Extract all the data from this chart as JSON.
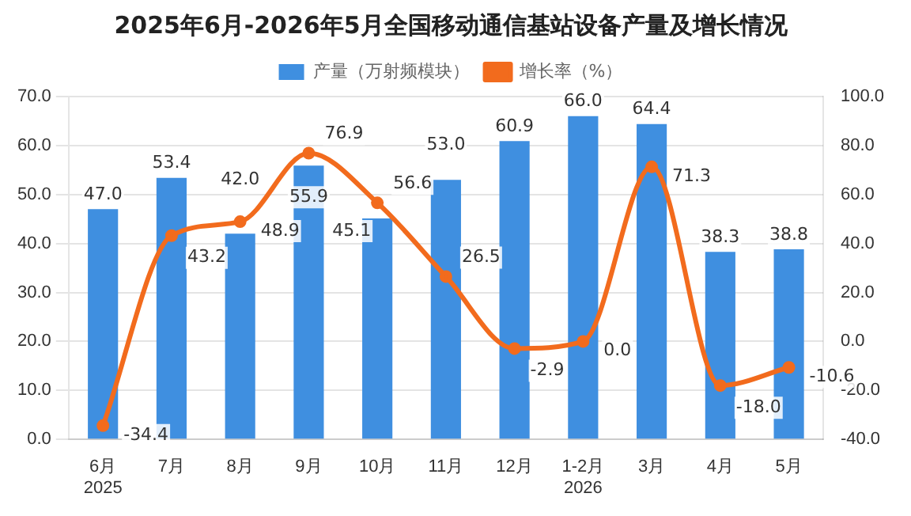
{
  "chart_data": {
    "type": "bar",
    "title": "2025年6月-2026年5月全国移动通信基站设备产量及增长情况",
    "categories": [
      "6月\n2025",
      "7月",
      "8月",
      "9月",
      "10月",
      "11月",
      "12月",
      "1-2月\n2026",
      "3月",
      "4月",
      "5月"
    ],
    "series": [
      {
        "name": "产量（万射频模块）",
        "color": "#3f8fe0",
        "values": [
          47.0,
          53.4,
          42.0,
          55.9,
          45.1,
          53.0,
          60.9,
          66.0,
          64.4,
          38.3,
          38.8
        ],
        "value_labels": [
          "47.0",
          "53.4",
          "42.0",
          "55.9",
          "45.1",
          "53.0",
          "60.9",
          "66.0",
          "64.4",
          "38.3",
          "38.8"
        ]
      },
      {
        "name": "增长率（%）",
        "type": "line",
        "axis": "y2",
        "color": "#f26b1d",
        "marker": "circle",
        "values": [
          -34.4,
          43.2,
          48.9,
          76.9,
          56.6,
          26.5,
          -2.9,
          0.0,
          71.3,
          -18.0,
          -10.6
        ],
        "value_labels": [
          "-34.4",
          "43.2",
          "48.9",
          "76.9",
          "56.6",
          "26.5",
          "-2.9",
          "0.0",
          "71.3",
          "-18.0",
          "-10.6"
        ]
      }
    ],
    "ylim": [
      0,
      70
    ],
    "yticks": [
      {
        "value": 0,
        "label": "0.0"
      },
      {
        "value": 10,
        "label": "10.0"
      },
      {
        "value": 20,
        "label": "20.0"
      },
      {
        "value": 30,
        "label": "30.0"
      },
      {
        "value": 40,
        "label": "40.0"
      },
      {
        "value": 50,
        "label": "50.0"
      },
      {
        "value": 60,
        "label": "60.0"
      },
      {
        "value": 70,
        "label": "70.0"
      }
    ],
    "y2lim": [
      -40,
      100
    ],
    "y2ticks": [
      {
        "value": -40,
        "label": "-40.0"
      },
      {
        "value": -20,
        "label": "-20.0"
      },
      {
        "value": 0,
        "label": "0.0"
      },
      {
        "value": 20,
        "label": "20.0"
      },
      {
        "value": 40,
        "label": "40.0"
      },
      {
        "value": 60,
        "label": "60.0"
      },
      {
        "value": 80,
        "label": "80.0"
      },
      {
        "value": 100,
        "label": "100.0"
      }
    ],
    "grid": "y",
    "legend": "top"
  }
}
